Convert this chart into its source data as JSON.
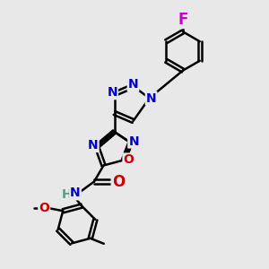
{
  "background_color": "#e8e8e8",
  "bond_color": "#000000",
  "bond_width": 1.8,
  "atom_colors": {
    "N": "#0000cc",
    "O": "#cc0000",
    "F": "#cc00cc",
    "C": "#000000",
    "H": "#5a9a8a"
  },
  "font_size_atom": 11,
  "font_size_small": 10,
  "figsize": [
    3.0,
    3.0
  ],
  "dpi": 100,
  "xlim": [
    0,
    10
  ],
  "ylim": [
    0,
    10
  ]
}
